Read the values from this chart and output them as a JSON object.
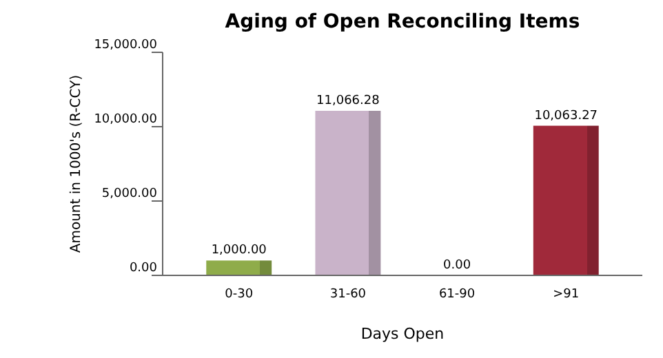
{
  "chart_data": {
    "type": "bar",
    "title": "Aging of Open Reconciling Items",
    "xlabel": "Days Open",
    "ylabel": "Amount in 1000's (R-CCY)",
    "categories": [
      "0-30",
      "31-60",
      "61-90",
      ">91"
    ],
    "values": [
      1000.0,
      11066.28,
      0.0,
      10063.27
    ],
    "colors": [
      "#8fac4a",
      "#c9b3c9",
      "#9a9a9a",
      "#a0293a"
    ],
    "value_labels": [
      "1,000.00",
      "11,066.28",
      "0.00",
      "10,063.27"
    ],
    "ylim": [
      0,
      15000
    ],
    "yticks": [
      {
        "value": 0,
        "label": "0.00"
      },
      {
        "value": 5000,
        "label": "5,000.00"
      },
      {
        "value": 10000,
        "label": "10,000.00"
      },
      {
        "value": 15000,
        "label": "15,000.00"
      }
    ],
    "grid": false
  }
}
